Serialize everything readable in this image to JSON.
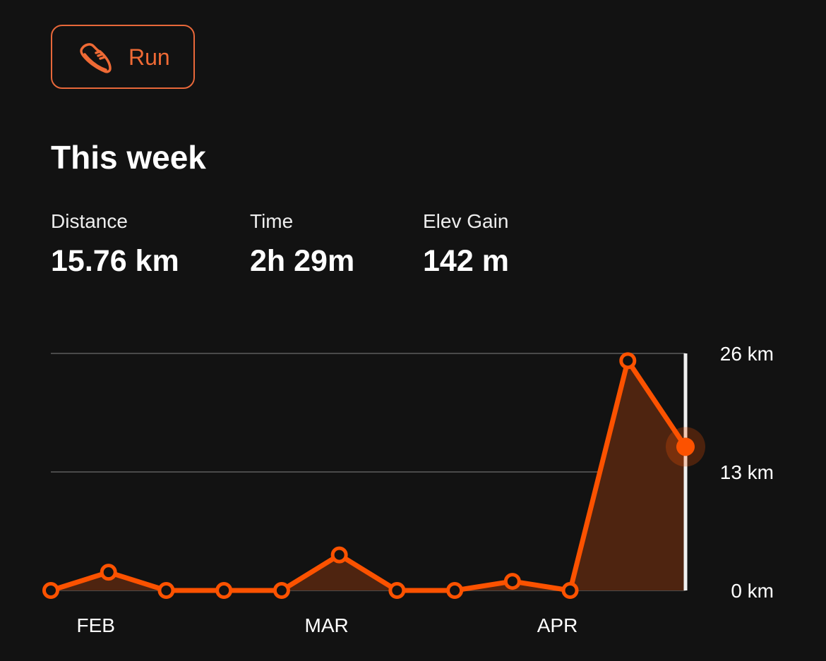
{
  "activity_button": {
    "label": "Run",
    "icon": "running-shoe-icon",
    "color": "#fc5200"
  },
  "section": {
    "title": "This week"
  },
  "stats": [
    {
      "label": "Distance",
      "value": "15.76 km"
    },
    {
      "label": "Time",
      "value": "2h 29m"
    },
    {
      "label": "Elev Gain",
      "value": "142 m"
    }
  ],
  "chart_data": {
    "type": "area",
    "x_labels": [
      "FEB",
      "MAR",
      "APR"
    ],
    "x_label_weeks": [
      1,
      5,
      9
    ],
    "values": [
      0,
      2.0,
      0,
      0,
      0,
      3.9,
      0,
      0,
      1.0,
      0,
      25.2,
      15.76
    ],
    "y_ticks": [
      "0 km",
      "13 km",
      "26 km"
    ],
    "ylim": [
      0,
      26
    ],
    "grid": true,
    "selected_index": 11,
    "line_color": "#fc5200",
    "fill_color": "#4e2410"
  }
}
